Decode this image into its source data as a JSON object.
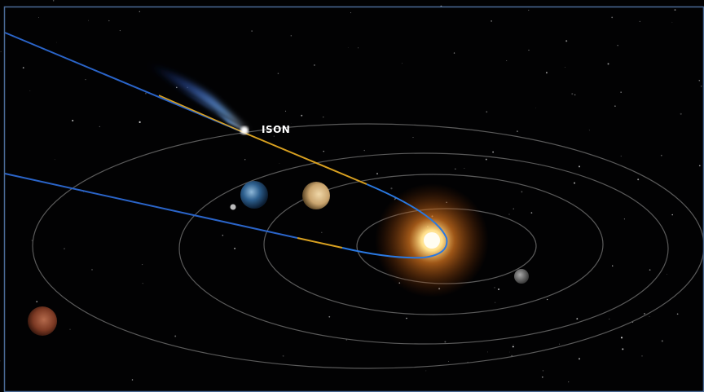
{
  "comet": {
    "label": "ISON"
  }
}
